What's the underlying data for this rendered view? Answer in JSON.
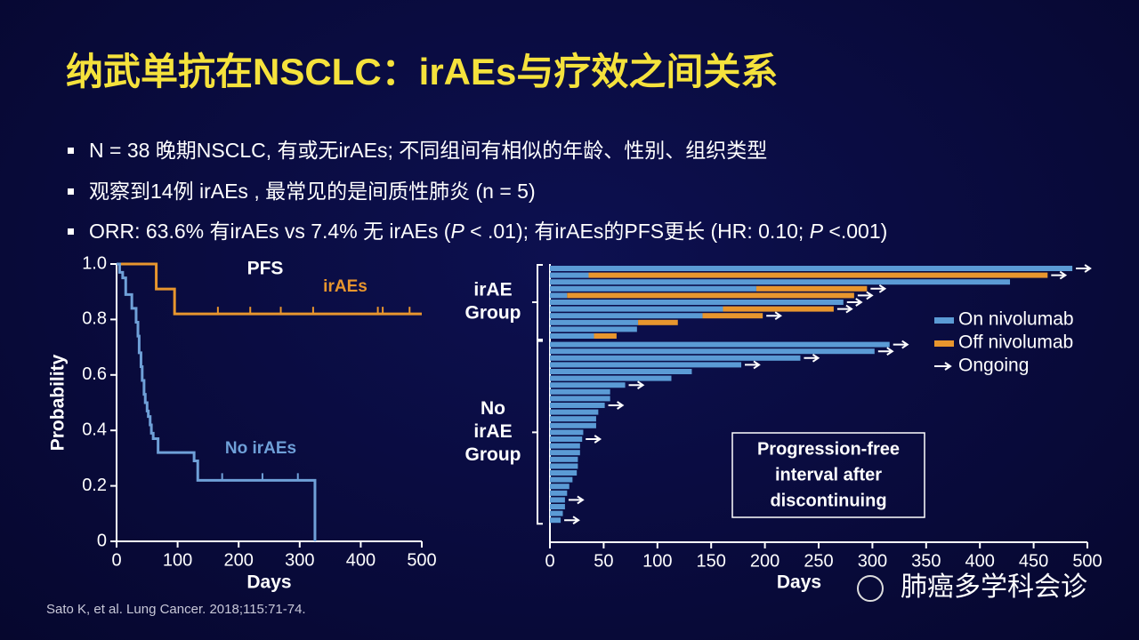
{
  "header": {
    "title": "纳武单抗在NSCLC：irAEs与疗效之间关系"
  },
  "bullets": [
    "N = 38 晚期NSCLC, 有或无irAEs; 不同组间有相似的年龄、性别、组织类型",
    "观察到14例 irAEs , 最常见的是间质性肺炎 (n = 5)",
    [
      "ORR: 63.6% 有irAEs vs 7.4% 无 irAEs (",
      "P",
      " < .01); 有irAEs的PFS更长 (HR: 0.10; ",
      "P",
      " <.001)"
    ]
  ],
  "citation": "Sato K, et al. Lung Cancer. 2018;115:71-74.",
  "watermark": "肺癌多学科会诊",
  "chart_data": [
    {
      "type": "line",
      "step": "post",
      "title": "PFS",
      "xlabel": "Days",
      "ylabel": "Probability",
      "xlim": [
        0,
        500
      ],
      "xticks": [
        0,
        100,
        200,
        300,
        400,
        500
      ],
      "ylim": [
        0,
        1
      ],
      "yticks": [
        0,
        0.2,
        0.4,
        0.6,
        0.8,
        {
          "value": 1,
          "label": "1.0"
        }
      ],
      "series": [
        {
          "name": "irAEs",
          "color": "#e8962e",
          "x": [
            0,
            65,
            95,
            500
          ],
          "values": [
            1,
            0.91,
            0.82,
            0.82
          ],
          "censored_x": [
            166,
            219,
            269,
            322,
            428,
            436,
            480
          ]
        },
        {
          "name": "No irAEs",
          "color": "#6fa0d8",
          "x": [
            0,
            5,
            10,
            15,
            25,
            32,
            35,
            37,
            40,
            42,
            45,
            47,
            50,
            52,
            55,
            57,
            60,
            68,
            127,
            133,
            325
          ],
          "values": [
            1,
            0.97,
            0.95,
            0.89,
            0.84,
            0.79,
            0.74,
            0.68,
            0.63,
            0.58,
            0.53,
            0.5,
            0.47,
            0.45,
            0.42,
            0.39,
            0.37,
            0.32,
            0.29,
            0.22,
            0
          ],
          "censored_x": [
            173,
            239,
            297
          ]
        }
      ]
    },
    {
      "type": "bar",
      "orientation": "horizontal",
      "stacked": true,
      "xlabel": "Days",
      "xlim": [
        0,
        500
      ],
      "xticks": [
        0,
        50,
        100,
        150,
        200,
        250,
        300,
        350,
        400,
        450,
        500
      ],
      "categories": [
        null,
        null,
        null,
        null,
        null,
        null,
        null,
        null,
        null,
        null,
        null,
        null,
        null,
        null,
        null,
        null,
        null,
        null,
        null,
        null,
        null,
        null,
        null,
        null,
        null,
        null,
        null,
        null,
        null,
        null,
        null,
        null,
        null,
        null,
        null,
        null,
        null,
        null
      ],
      "series": [
        {
          "name": "On nivolumab",
          "color": "#5b9bd5",
          "values": [
            486,
            36,
            428,
            192,
            16,
            273,
            161,
            142,
            82,
            81,
            41,
            316,
            302,
            233,
            178,
            132,
            113,
            70,
            56,
            56,
            51,
            45,
            43,
            43,
            31,
            30,
            28,
            28,
            26,
            26,
            25,
            21,
            18,
            16,
            14,
            14,
            12,
            10
          ]
        },
        {
          "name": "Off nivolumab",
          "color": "#e8962e",
          "values": [
            null,
            427,
            null,
            103,
            267,
            null,
            103,
            56,
            37,
            null,
            21,
            null,
            null,
            null,
            null,
            null,
            null,
            null,
            null,
            null,
            null,
            null,
            null,
            null,
            null,
            null,
            null,
            null,
            null,
            null,
            null,
            null,
            null,
            null,
            null,
            null,
            null,
            null
          ]
        }
      ],
      "ongoing": {
        "name": "Ongoing",
        "values": [
          true,
          true,
          false,
          true,
          true,
          true,
          true,
          true,
          false,
          false,
          false,
          true,
          true,
          true,
          true,
          false,
          false,
          true,
          false,
          false,
          true,
          false,
          false,
          false,
          false,
          true,
          false,
          false,
          false,
          false,
          false,
          false,
          false,
          false,
          true,
          false,
          false,
          true
        ]
      },
      "groups": [
        {
          "label": [
            "irAE",
            "Group"
          ],
          "rows": [
            0,
            10
          ]
        },
        {
          "label": [
            "No",
            "irAE",
            "Group"
          ],
          "rows": [
            11,
            37
          ]
        }
      ],
      "box_text": [
        "Progression-free",
        "interval after",
        "discontinuing"
      ]
    }
  ]
}
